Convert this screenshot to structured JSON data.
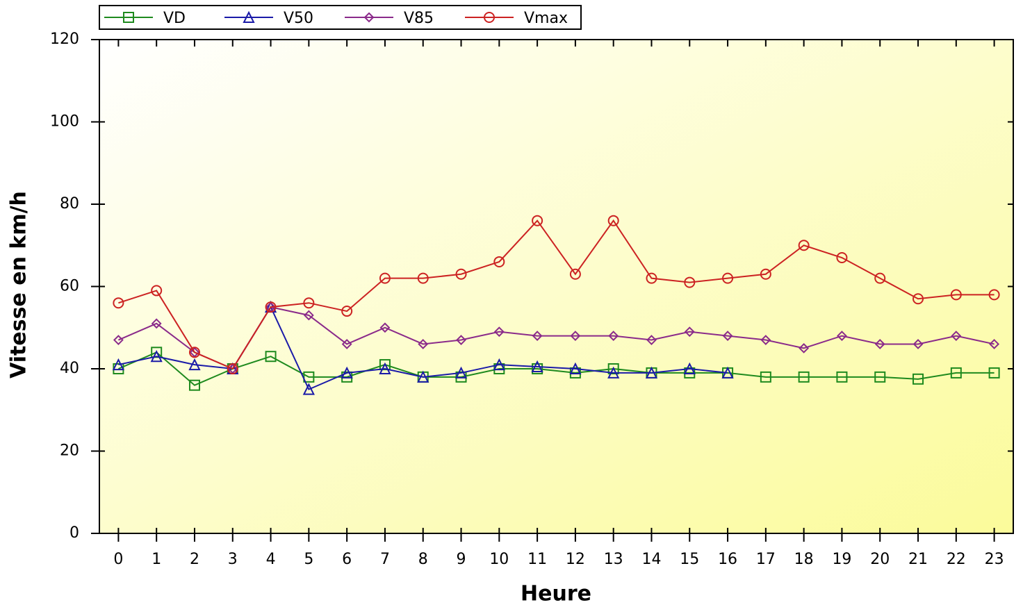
{
  "chart_data": {
    "type": "line",
    "x_label": "Heure",
    "y_label": "Vitesse en km/h",
    "x": [
      0,
      1,
      2,
      3,
      4,
      5,
      6,
      7,
      8,
      9,
      10,
      11,
      12,
      13,
      14,
      15,
      16,
      17,
      18,
      19,
      20,
      21,
      22,
      23
    ],
    "xlim": [
      -0.5,
      23.5
    ],
    "xticks": [
      0,
      1,
      2,
      3,
      4,
      5,
      6,
      7,
      8,
      9,
      10,
      11,
      12,
      13,
      14,
      15,
      16,
      17,
      18,
      19,
      20,
      21,
      22,
      23
    ],
    "ylim": [
      0,
      120
    ],
    "yticks": [
      0,
      20,
      40,
      60,
      80,
      100,
      120
    ],
    "legend": "top",
    "series": [
      {
        "name": "VD",
        "color": "#1e8a1e",
        "marker": "square",
        "values": [
          40,
          44,
          36,
          40,
          43,
          38,
          38,
          41,
          38,
          38,
          40,
          40,
          39,
          40,
          39,
          39,
          39,
          38,
          38,
          38,
          38,
          37.5,
          39,
          39
        ]
      },
      {
        "name": "V50",
        "color": "#1a1aa8",
        "marker": "triangle",
        "values": [
          41,
          43,
          41,
          40,
          55,
          35,
          39,
          40,
          38,
          39,
          41,
          40.5,
          40,
          39,
          39,
          40,
          39,
          null,
          null,
          null,
          null,
          null,
          null,
          null
        ]
      },
      {
        "name": "V85",
        "color": "#8a2a8a",
        "marker": "diamond",
        "values": [
          47,
          51,
          44,
          40,
          55,
          53,
          46,
          50,
          46,
          47,
          49,
          48,
          48,
          48,
          47,
          49,
          48,
          47,
          45,
          48,
          46,
          46,
          48,
          46
        ]
      },
      {
        "name": "Vmax",
        "color": "#cc2222",
        "marker": "circle",
        "values": [
          56,
          59,
          44,
          40,
          55,
          56,
          54,
          62,
          62,
          63,
          66,
          76,
          63,
          76,
          62,
          61,
          62,
          63,
          70,
          67,
          62,
          57,
          58,
          58
        ]
      }
    ]
  }
}
